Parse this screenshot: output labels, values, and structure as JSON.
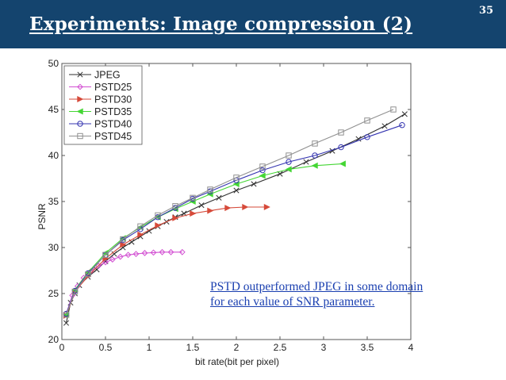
{
  "slide": {
    "title": "Experiments: Image compression (2)",
    "page_number": "35",
    "annotation_lines": [
      "PSTD outperformed JPEG in some domain",
      "for each value of SNR parameter."
    ]
  },
  "chart_data": {
    "type": "line",
    "title": "",
    "xlabel": "bit rate(bit per pixel)",
    "ylabel": "PSNR",
    "xlim": [
      0,
      4
    ],
    "ylim": [
      20,
      50
    ],
    "xticks": [
      0,
      0.5,
      1,
      1.5,
      2,
      2.5,
      3,
      3.5,
      4
    ],
    "xtick_labels": [
      "0",
      "0.5",
      "1",
      "1.5",
      "2",
      "2.5",
      "3",
      "3.5",
      "4"
    ],
    "yticks": [
      20,
      25,
      30,
      35,
      40,
      45,
      50
    ],
    "ytick_labels": [
      "20",
      "25",
      "30",
      "35",
      "40",
      "45",
      "50"
    ],
    "legend_position": "top-left",
    "series": [
      {
        "name": "JPEG",
        "color": "#303030",
        "marker": "x",
        "x": [
          0.05,
          0.1,
          0.15,
          0.2,
          0.3,
          0.4,
          0.5,
          0.6,
          0.7,
          0.8,
          0.9,
          1.0,
          1.1,
          1.2,
          1.3,
          1.4,
          1.6,
          1.8,
          2.0,
          2.2,
          2.5,
          2.8,
          3.1,
          3.4,
          3.7,
          3.93
        ],
        "y": [
          21.8,
          24.0,
          25.0,
          25.9,
          26.8,
          27.6,
          28.5,
          29.3,
          30.0,
          30.6,
          31.2,
          31.8,
          32.3,
          32.8,
          33.3,
          33.7,
          34.6,
          35.4,
          36.2,
          36.9,
          38.0,
          39.3,
          40.5,
          41.8,
          43.2,
          44.5
        ]
      },
      {
        "name": "PSTD25",
        "color": "#d24fd2",
        "marker": "diamond",
        "x": [
          0.05,
          0.12,
          0.18,
          0.25,
          0.33,
          0.42,
          0.5,
          0.58,
          0.67,
          0.76,
          0.85,
          0.95,
          1.05,
          1.15,
          1.25,
          1.38
        ],
        "y": [
          22.8,
          24.8,
          25.8,
          26.7,
          27.4,
          28.0,
          28.4,
          28.7,
          29.0,
          29.2,
          29.3,
          29.4,
          29.45,
          29.5,
          29.5,
          29.5
        ]
      },
      {
        "name": "PSTD30",
        "color": "#d64a3a",
        "marker": "triangle-right",
        "x": [
          0.05,
          0.15,
          0.3,
          0.5,
          0.7,
          0.9,
          1.1,
          1.3,
          1.5,
          1.7,
          1.9,
          2.1,
          2.35
        ],
        "y": [
          22.6,
          25.2,
          26.9,
          28.8,
          30.3,
          31.4,
          32.4,
          33.2,
          33.7,
          34.0,
          34.3,
          34.4,
          34.4
        ]
      },
      {
        "name": "PSTD35",
        "color": "#44d634",
        "marker": "triangle-left",
        "x": [
          0.05,
          0.15,
          0.3,
          0.5,
          0.7,
          0.9,
          1.1,
          1.3,
          1.5,
          1.7,
          2.0,
          2.3,
          2.6,
          2.9,
          3.22
        ],
        "y": [
          22.7,
          25.4,
          27.3,
          29.4,
          31.0,
          32.2,
          33.3,
          34.2,
          35.0,
          35.8,
          36.9,
          37.8,
          38.5,
          38.9,
          39.1
        ]
      },
      {
        "name": "PSTD40",
        "color": "#3434b0",
        "marker": "circle",
        "x": [
          0.05,
          0.15,
          0.3,
          0.5,
          0.7,
          0.9,
          1.1,
          1.3,
          1.5,
          1.7,
          2.0,
          2.3,
          2.6,
          2.9,
          3.2,
          3.5,
          3.9
        ],
        "y": [
          22.8,
          25.3,
          27.2,
          29.2,
          30.8,
          32.0,
          33.3,
          34.3,
          35.3,
          36.1,
          37.3,
          38.4,
          39.3,
          40.0,
          40.9,
          42.0,
          43.3
        ]
      },
      {
        "name": "PSTD45",
        "color": "#909090",
        "marker": "square",
        "x": [
          0.05,
          0.15,
          0.3,
          0.5,
          0.7,
          0.9,
          1.1,
          1.3,
          1.5,
          1.7,
          2.0,
          2.3,
          2.6,
          2.9,
          3.2,
          3.5,
          3.8
        ],
        "y": [
          22.7,
          25.2,
          27.1,
          29.2,
          30.9,
          32.3,
          33.5,
          34.5,
          35.4,
          36.3,
          37.6,
          38.8,
          40.0,
          41.3,
          42.5,
          43.8,
          45.0
        ]
      }
    ]
  }
}
